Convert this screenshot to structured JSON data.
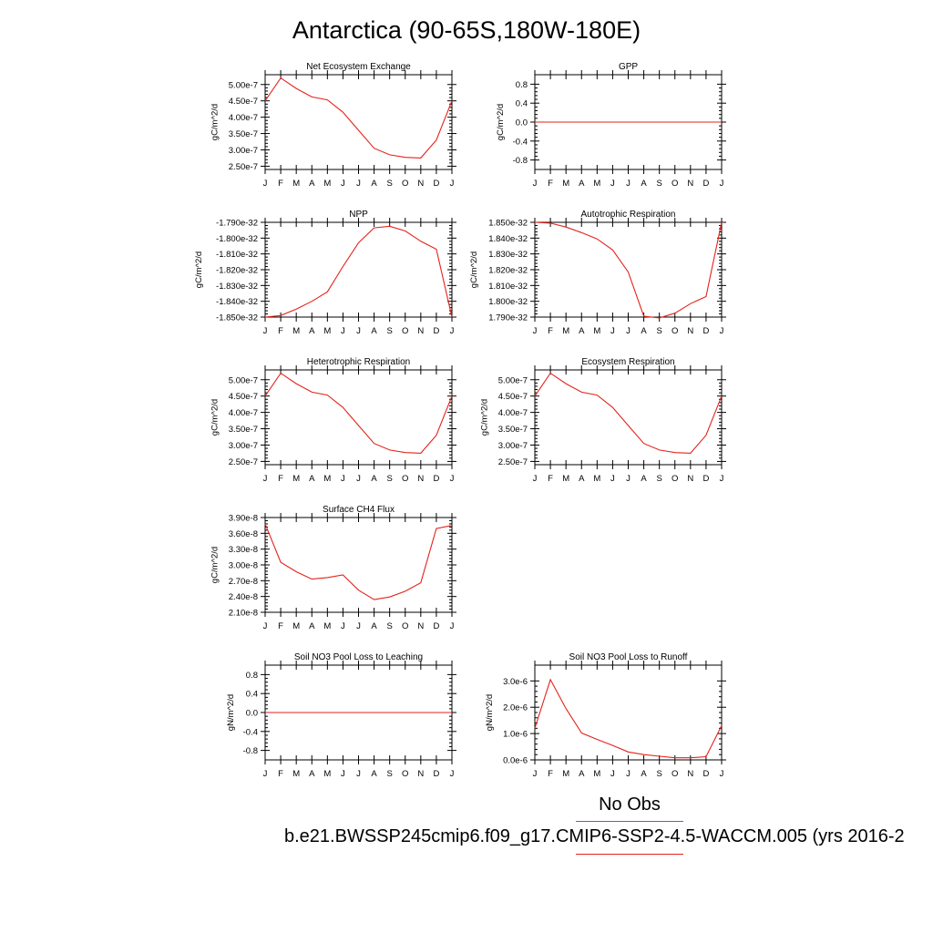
{
  "page": {
    "title": "Antarctica (90-65S,180W-180E)"
  },
  "legend": {
    "obs_label": "No Obs",
    "case_label": "b.e21.BWSSP245cmip6.f09_g17.CMIP6-SSP2-4.5-WACCM.005 (yrs 2016-2",
    "obs_color": "#5b62d6",
    "case_color": "#e4221b"
  },
  "chart_data": [
    {
      "type": "line",
      "title": "Net Ecosystem Exchange",
      "ylabel": "gC/m^2/d",
      "categories": [
        "J",
        "F",
        "M",
        "A",
        "M",
        "J",
        "J",
        "A",
        "S",
        "O",
        "N",
        "D",
        "J"
      ],
      "values": [
        4.5e-07,
        5.2e-07,
        4.88e-07,
        4.62e-07,
        4.53e-07,
        4.15e-07,
        3.6e-07,
        3.05e-07,
        2.85e-07,
        2.77e-07,
        2.75e-07,
        3.3e-07,
        4.5e-07
      ],
      "ylim": [
        2.4e-07,
        5.3e-07
      ],
      "yticks": [
        2.5e-07,
        3e-07,
        3.5e-07,
        4e-07,
        4.5e-07,
        5e-07
      ],
      "ytick_labels": [
        "2.50e-7",
        "3.00e-7",
        "3.50e-7",
        "4.00e-7",
        "4.50e-7",
        "5.00e-7"
      ]
    },
    {
      "type": "line",
      "title": "GPP",
      "ylabel": "gC/m^2/d",
      "categories": [
        "J",
        "F",
        "M",
        "A",
        "M",
        "J",
        "J",
        "A",
        "S",
        "O",
        "N",
        "D",
        "J"
      ],
      "values": [
        0,
        0,
        0,
        0,
        0,
        0,
        0,
        0,
        0,
        0,
        0,
        0,
        0
      ],
      "ylim": [
        -1.0,
        1.0
      ],
      "yticks": [
        -0.8,
        -0.4,
        0.0,
        0.4,
        0.8
      ],
      "ytick_labels": [
        "-0.8",
        "-0.4",
        "0.0",
        "0.4",
        "0.8"
      ]
    },
    {
      "type": "line",
      "title": "NPP",
      "ylabel": "gC/m^2/d",
      "categories": [
        "J",
        "F",
        "M",
        "A",
        "M",
        "J",
        "J",
        "A",
        "S",
        "O",
        "N",
        "D",
        "J"
      ],
      "values": [
        -1.85e-32,
        -1.849e-32,
        -1.845e-32,
        -1.84e-32,
        -1.834e-32,
        -1.818e-32,
        -1.803e-32,
        -1.7935e-32,
        -1.7925e-32,
        -1.7955e-32,
        -1.802e-32,
        -1.807e-32,
        -1.85e-32
      ],
      "ylim": [
        -1.85e-32,
        -1.79e-32
      ],
      "yticks": [
        -1.85e-32,
        -1.84e-32,
        -1.83e-32,
        -1.82e-32,
        -1.81e-32,
        -1.8e-32,
        -1.79e-32
      ],
      "ytick_labels": [
        "-1.850e-32",
        "-1.840e-32",
        "-1.830e-32",
        "-1.820e-32",
        "-1.810e-32",
        "-1.800e-32",
        "-1.790e-32"
      ]
    },
    {
      "type": "line",
      "title": "Autotrophic Respiration",
      "ylabel": "gC/m^2/d",
      "categories": [
        "J",
        "F",
        "M",
        "A",
        "M",
        "J",
        "J",
        "A",
        "S",
        "O",
        "N",
        "D",
        "J"
      ],
      "values": [
        1.85e-32,
        1.8495e-32,
        1.847e-32,
        1.8435e-32,
        1.8395e-32,
        1.8325e-32,
        1.8185e-32,
        1.7905e-32,
        1.7895e-32,
        1.7925e-32,
        1.7985e-32,
        1.803e-32,
        1.85e-32
      ],
      "ylim": [
        1.79e-32,
        1.85e-32
      ],
      "yticks": [
        1.79e-32,
        1.8e-32,
        1.81e-32,
        1.82e-32,
        1.83e-32,
        1.84e-32,
        1.85e-32
      ],
      "ytick_labels": [
        "1.790e-32",
        "1.800e-32",
        "1.810e-32",
        "1.820e-32",
        "1.830e-32",
        "1.840e-32",
        "1.850e-32"
      ]
    },
    {
      "type": "line",
      "title": "Heterotrophic Respiration",
      "ylabel": "gC/m^2/d",
      "categories": [
        "J",
        "F",
        "M",
        "A",
        "M",
        "J",
        "J",
        "A",
        "S",
        "O",
        "N",
        "D",
        "J"
      ],
      "values": [
        4.5e-07,
        5.2e-07,
        4.88e-07,
        4.62e-07,
        4.53e-07,
        4.15e-07,
        3.6e-07,
        3.05e-07,
        2.85e-07,
        2.77e-07,
        2.75e-07,
        3.3e-07,
        4.5e-07
      ],
      "ylim": [
        2.4e-07,
        5.3e-07
      ],
      "yticks": [
        2.5e-07,
        3e-07,
        3.5e-07,
        4e-07,
        4.5e-07,
        5e-07
      ],
      "ytick_labels": [
        "2.50e-7",
        "3.00e-7",
        "3.50e-7",
        "4.00e-7",
        "4.50e-7",
        "5.00e-7"
      ]
    },
    {
      "type": "line",
      "title": "Ecosystem Respiration",
      "ylabel": "gC/m^2/d",
      "categories": [
        "J",
        "F",
        "M",
        "A",
        "M",
        "J",
        "J",
        "A",
        "S",
        "O",
        "N",
        "D",
        "J"
      ],
      "values": [
        4.5e-07,
        5.2e-07,
        4.88e-07,
        4.62e-07,
        4.53e-07,
        4.15e-07,
        3.6e-07,
        3.05e-07,
        2.85e-07,
        2.77e-07,
        2.75e-07,
        3.3e-07,
        4.5e-07
      ],
      "ylim": [
        2.4e-07,
        5.3e-07
      ],
      "yticks": [
        2.5e-07,
        3e-07,
        3.5e-07,
        4e-07,
        4.5e-07,
        5e-07
      ],
      "ytick_labels": [
        "2.50e-7",
        "3.00e-7",
        "3.50e-7",
        "4.00e-7",
        "4.50e-7",
        "5.00e-7"
      ]
    },
    {
      "type": "line",
      "title": "Surface CH4 Flux",
      "ylabel": "gC/m^2/d",
      "categories": [
        "J",
        "F",
        "M",
        "A",
        "M",
        "J",
        "J",
        "A",
        "S",
        "O",
        "N",
        "D",
        "J"
      ],
      "values": [
        3.78e-08,
        3.05e-08,
        2.87e-08,
        2.73e-08,
        2.76e-08,
        2.81e-08,
        2.52e-08,
        2.34e-08,
        2.39e-08,
        2.5e-08,
        2.66e-08,
        3.69e-08,
        3.75e-08
      ],
      "ylim": [
        2.1e-08,
        3.9e-08
      ],
      "yticks": [
        2.1e-08,
        2.4e-08,
        2.7e-08,
        3e-08,
        3.3e-08,
        3.6e-08,
        3.9e-08
      ],
      "ytick_labels": [
        "2.10e-8",
        "2.40e-8",
        "2.70e-8",
        "3.00e-8",
        "3.30e-8",
        "3.60e-8",
        "3.90e-8"
      ]
    },
    {
      "type": "line",
      "title": "Soil NO3 Pool Loss to Leaching",
      "ylabel": "gN/m^2/d",
      "categories": [
        "J",
        "F",
        "M",
        "A",
        "M",
        "J",
        "J",
        "A",
        "S",
        "O",
        "N",
        "D",
        "J"
      ],
      "values": [
        0,
        0,
        0,
        0,
        0,
        0,
        0,
        0,
        0,
        0,
        0,
        0,
        0
      ],
      "ylim": [
        -1.0,
        1.0
      ],
      "yticks": [
        -0.8,
        -0.4,
        0.0,
        0.4,
        0.8
      ],
      "ytick_labels": [
        "-0.8",
        "-0.4",
        "0.0",
        "0.4",
        "0.8"
      ]
    },
    {
      "type": "line",
      "title": "Soil NO3 Pool Loss to Runoff",
      "ylabel": "gN/m^2/d",
      "categories": [
        "J",
        "F",
        "M",
        "A",
        "M",
        "J",
        "J",
        "A",
        "S",
        "O",
        "N",
        "D",
        "J"
      ],
      "values": [
        1.2e-06,
        3.05e-06,
        1.95e-06,
        1.02e-06,
        7.8e-07,
        5.5e-07,
        3e-07,
        2e-07,
        1.4e-07,
        8e-08,
        8e-08,
        1.2e-07,
        1.3e-06
      ],
      "ylim": [
        0,
        3.6e-06
      ],
      "yticks": [
        0,
        1e-06,
        2e-06,
        3e-06
      ],
      "ytick_labels": [
        "0.0e-6",
        "1.0e-6",
        "2.0e-6",
        "3.0e-6"
      ]
    }
  ]
}
